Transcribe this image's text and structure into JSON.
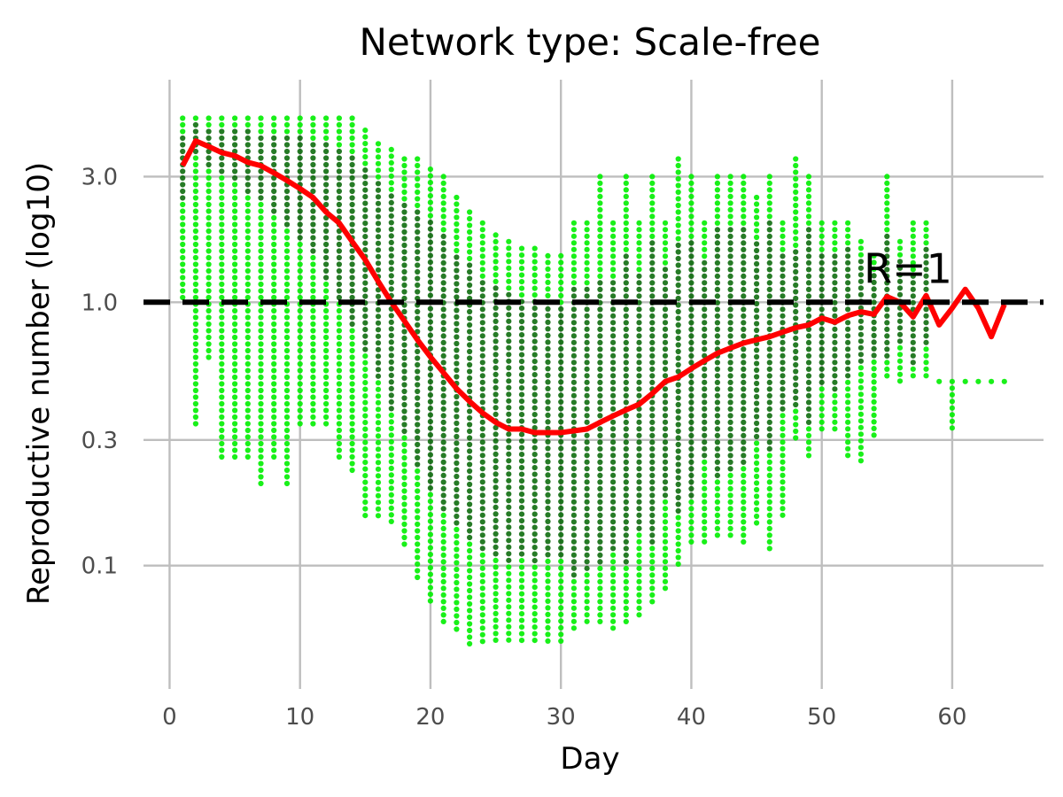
{
  "chart_data": {
    "type": "scatter",
    "title": "Network type: Scale-free",
    "xlabel": "Day",
    "ylabel": "Reproductive number (log10)",
    "xlim": [
      -2,
      67
    ],
    "ylim": [
      0.034,
      7.0
    ],
    "y_scale": "log10",
    "x_ticks": [
      0,
      10,
      20,
      30,
      40,
      50,
      60
    ],
    "y_ticks": [
      0.1,
      0.3,
      1.0,
      3.0
    ],
    "y_tick_labels": [
      "0.1",
      "0.3",
      "1.0",
      "3.0"
    ],
    "grid": true,
    "reference_line": {
      "y": 1.0,
      "label": "R=1",
      "color": "#000000",
      "style": "dashed"
    },
    "colors": {
      "light_points": "#00ee00",
      "dark_points": "#006400",
      "mean_line": "#ff0000",
      "grid": "#bebebe"
    },
    "series": [
      {
        "name": "",
        "type": "scatter-envelope",
        "note_points": "dense vertical columns of points per day; values given as visible range per day",
        "days": [
          1,
          2,
          3,
          4,
          5,
          6,
          7,
          8,
          9,
          10,
          11,
          12,
          13,
          14,
          15,
          16,
          17,
          18,
          19,
          20,
          21,
          22,
          23,
          24,
          25,
          26,
          27,
          28,
          29,
          30,
          31,
          32,
          33,
          34,
          35,
          36,
          37,
          38,
          39,
          40,
          41,
          42,
          43,
          44,
          45,
          46,
          47,
          48,
          49,
          50,
          51,
          52,
          53,
          54,
          55,
          56,
          57,
          58,
          59,
          60,
          61,
          62,
          63,
          64
        ],
        "light_min": [
          1.0,
          0.33,
          0.6,
          0.25,
          0.25,
          0.25,
          0.2,
          0.25,
          0.2,
          0.33,
          0.33,
          0.33,
          0.25,
          0.22,
          0.15,
          0.15,
          0.14,
          0.12,
          0.09,
          0.07,
          0.06,
          0.055,
          0.05,
          0.05,
          0.05,
          0.05,
          0.05,
          0.05,
          0.05,
          0.05,
          0.055,
          0.06,
          0.06,
          0.055,
          0.06,
          0.065,
          0.07,
          0.08,
          0.1,
          0.12,
          0.12,
          0.13,
          0.13,
          0.12,
          0.14,
          0.11,
          0.15,
          0.3,
          0.25,
          0.33,
          0.33,
          0.25,
          0.25,
          0.3,
          0.5,
          0.5,
          0.5,
          0.5,
          0.5,
          0.33,
          0.5,
          0.5,
          0.5,
          0.5
        ],
        "light_max": [
          5.0,
          5.0,
          5.0,
          5.0,
          5.0,
          5.0,
          5.0,
          5.0,
          5.0,
          5.0,
          5.0,
          5.0,
          5.0,
          5.0,
          4.5,
          4.0,
          3.8,
          3.5,
          3.5,
          3.2,
          3.0,
          2.5,
          2.2,
          2.0,
          1.8,
          1.7,
          1.6,
          1.6,
          1.5,
          1.5,
          2.0,
          2.0,
          3.0,
          2.0,
          3.0,
          2.0,
          3.0,
          2.0,
          3.5,
          3.0,
          2.0,
          3.0,
          3.0,
          3.0,
          2.5,
          3.0,
          2.0,
          3.5,
          3.0,
          2.0,
          2.0,
          2.0,
          1.7,
          1.5,
          3.0,
          1.7,
          2.0,
          2.0,
          0.5,
          0.5,
          0.5,
          0.5,
          0.5,
          0.5
        ]
      },
      {
        "name": "",
        "type": "mean-line",
        "days": [
          1,
          2,
          3,
          4,
          5,
          6,
          7,
          8,
          9,
          10,
          11,
          12,
          13,
          14,
          15,
          16,
          17,
          18,
          19,
          20,
          21,
          22,
          23,
          24,
          25,
          26,
          27,
          28,
          29,
          30,
          31,
          32,
          33,
          34,
          35,
          36,
          37,
          38,
          39,
          40,
          41,
          42,
          43,
          44,
          45,
          46,
          47,
          48,
          49,
          50,
          51,
          52,
          53,
          54,
          55,
          56,
          57,
          58,
          59,
          60,
          61,
          62,
          63,
          64
        ],
        "values": [
          3.3,
          4.1,
          3.9,
          3.7,
          3.6,
          3.4,
          3.3,
          3.1,
          2.9,
          2.7,
          2.5,
          2.2,
          2.0,
          1.7,
          1.45,
          1.2,
          1.0,
          0.85,
          0.72,
          0.62,
          0.54,
          0.47,
          0.42,
          0.38,
          0.35,
          0.33,
          0.33,
          0.32,
          0.32,
          0.32,
          0.325,
          0.33,
          0.35,
          0.37,
          0.39,
          0.41,
          0.45,
          0.5,
          0.52,
          0.56,
          0.6,
          0.64,
          0.67,
          0.7,
          0.72,
          0.74,
          0.77,
          0.8,
          0.82,
          0.87,
          0.84,
          0.89,
          0.92,
          0.9,
          1.05,
          1.0,
          0.88,
          1.06,
          0.82,
          0.95,
          1.12,
          0.95,
          0.74,
          0.98
        ]
      }
    ]
  }
}
